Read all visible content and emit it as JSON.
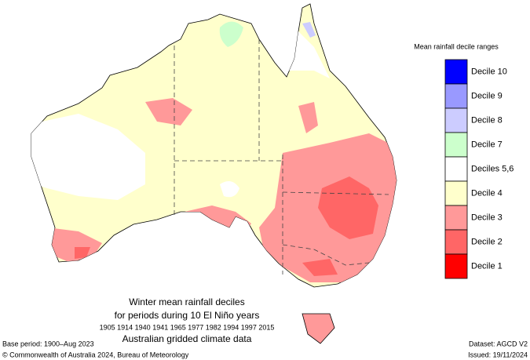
{
  "legend": {
    "title": "Mean rainfall decile ranges",
    "items": [
      {
        "label": "Decile 10",
        "color": "#0000ff"
      },
      {
        "label": "Decile 9",
        "color": "#9999ff"
      },
      {
        "label": "Decile 8",
        "color": "#ccccff"
      },
      {
        "label": "Decile 7",
        "color": "#ccffcc"
      },
      {
        "label": "Deciles 5,6",
        "color": "#ffffff"
      },
      {
        "label": "Decile 4",
        "color": "#ffffcc"
      },
      {
        "label": "Decile 3",
        "color": "#ff9999"
      },
      {
        "label": "Decile 2",
        "color": "#ff6666"
      },
      {
        "label": "Decile 1",
        "color": "#ff0000"
      }
    ]
  },
  "caption": {
    "title": "Winter mean rainfall deciles",
    "subtitle": "for periods during 10 El Niño years",
    "years": "1905 1914 1940 1941 1965 1977 1982 1994 1997 2015",
    "source": "Australian gridded climate data"
  },
  "footer": {
    "base_period": "Base period: 1900–Aug 2023",
    "copyright": "© Commonwealth of Australia 2024, Bureau of Meteorology",
    "dataset": "Dataset: AGCD V2",
    "issued": "Issued: 19/11/2024"
  }
}
